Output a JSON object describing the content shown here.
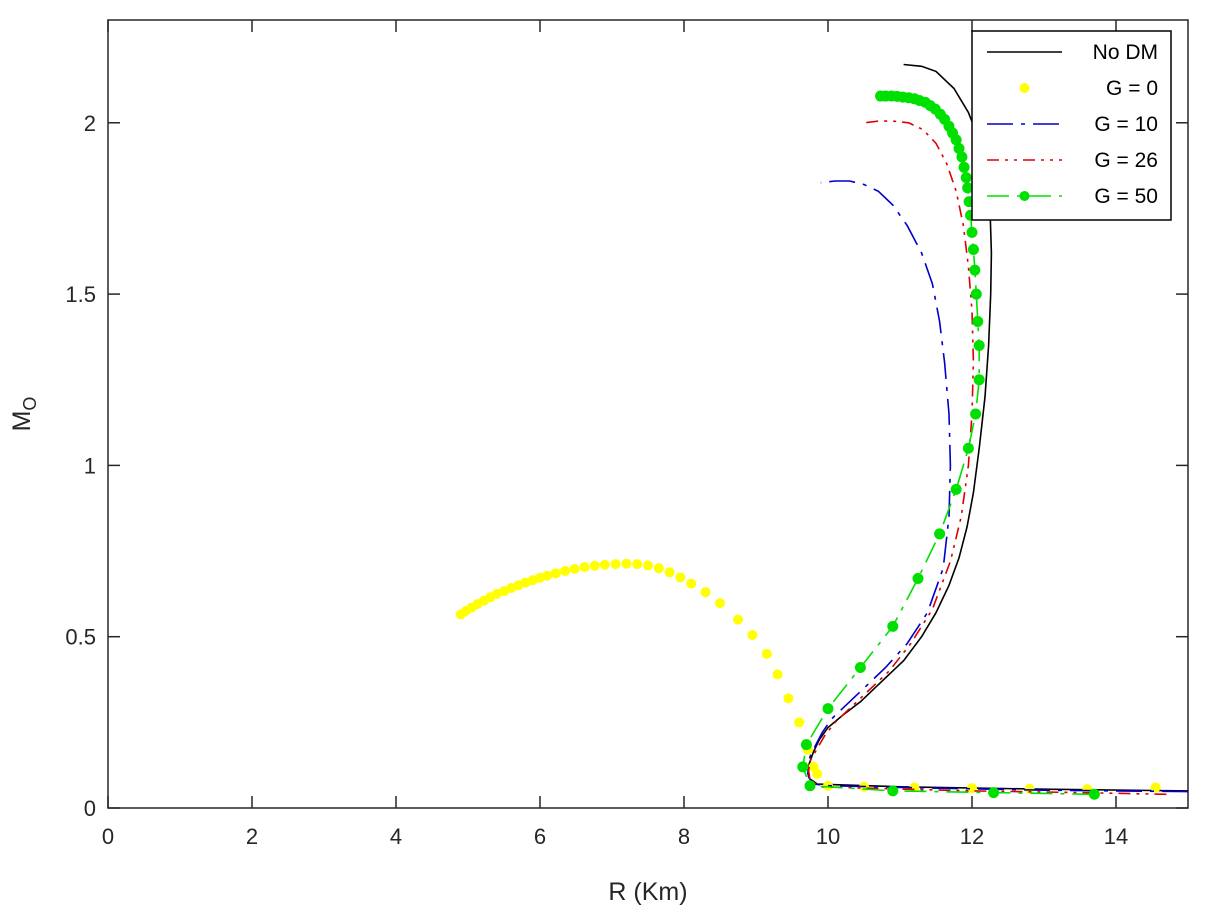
{
  "chart_data": {
    "type": "line",
    "title": "",
    "xlabel": "R (Km)",
    "ylabel_main": "M",
    "ylabel_sub": "O",
    "xlim": [
      0,
      15
    ],
    "ylim": [
      0,
      2.3
    ],
    "xticks": [
      0,
      2,
      4,
      6,
      8,
      10,
      12,
      14
    ],
    "yticks": [
      0,
      0.5,
      1,
      1.5,
      2
    ],
    "xtick_labels": [
      "0",
      "2",
      "4",
      "6",
      "8",
      "10",
      "12",
      "14"
    ],
    "ytick_labels": [
      "0",
      "0.5",
      "1",
      "1.5",
      "2"
    ],
    "grid": false,
    "legend_position": "top-right",
    "series": [
      {
        "name": "No DM",
        "style": "solid",
        "color": "#000000",
        "x": [
          15.0,
          13.0,
          11.0,
          10.1,
          9.85,
          9.75,
          9.72,
          9.74,
          9.8,
          9.88,
          10.0,
          10.2,
          10.45,
          10.75,
          11.05,
          11.3,
          11.5,
          11.68,
          11.82,
          11.93,
          12.02,
          12.1,
          12.18,
          12.23,
          12.26,
          12.27,
          12.25,
          12.2,
          12.1,
          11.95,
          11.75,
          11.5,
          11.3,
          11.05
        ],
        "y": [
          0.05,
          0.055,
          0.062,
          0.068,
          0.07,
          0.085,
          0.1,
          0.13,
          0.165,
          0.2,
          0.235,
          0.27,
          0.31,
          0.37,
          0.43,
          0.5,
          0.57,
          0.65,
          0.73,
          0.82,
          0.92,
          1.05,
          1.2,
          1.35,
          1.5,
          1.62,
          1.75,
          1.85,
          1.95,
          2.03,
          2.1,
          2.15,
          2.165,
          2.17
        ]
      },
      {
        "name": "G = 0",
        "style": "dots",
        "color": "#ffff00",
        "x": [
          4.9,
          4.97,
          5.05,
          5.13,
          5.22,
          5.31,
          5.4,
          5.5,
          5.6,
          5.7,
          5.8,
          5.9,
          6.0,
          6.1,
          6.22,
          6.35,
          6.48,
          6.62,
          6.76,
          6.9,
          7.05,
          7.2,
          7.35,
          7.5,
          7.65,
          7.8,
          7.95,
          8.1,
          8.3,
          8.5,
          8.75,
          8.95,
          9.15,
          9.3,
          9.45,
          9.6,
          9.72,
          9.8,
          9.85,
          10.0,
          10.5,
          11.2,
          12.0,
          12.8,
          13.6,
          14.55
        ],
        "y": [
          0.565,
          0.575,
          0.585,
          0.595,
          0.605,
          0.615,
          0.625,
          0.633,
          0.642,
          0.65,
          0.658,
          0.665,
          0.672,
          0.678,
          0.685,
          0.692,
          0.698,
          0.703,
          0.707,
          0.71,
          0.712,
          0.713,
          0.712,
          0.708,
          0.7,
          0.688,
          0.673,
          0.655,
          0.63,
          0.598,
          0.55,
          0.505,
          0.45,
          0.39,
          0.32,
          0.25,
          0.17,
          0.12,
          0.1,
          0.065,
          0.062,
          0.06,
          0.058,
          0.056,
          0.055,
          0.06
        ]
      },
      {
        "name": "G = 10",
        "style": "dashdot",
        "color": "#0000cc",
        "x": [
          15.0,
          13.0,
          11.0,
          10.0,
          9.8,
          9.73,
          9.72,
          9.75,
          9.82,
          9.92,
          10.05,
          10.25,
          10.5,
          10.8,
          11.1,
          11.38,
          11.6,
          11.68,
          11.7,
          11.68,
          11.62,
          11.55,
          11.45,
          11.3,
          11.1,
          10.9,
          10.7,
          10.5,
          10.3,
          10.1,
          9.9
        ],
        "y": [
          0.048,
          0.052,
          0.06,
          0.065,
          0.07,
          0.09,
          0.12,
          0.15,
          0.18,
          0.22,
          0.26,
          0.3,
          0.35,
          0.41,
          0.48,
          0.57,
          0.7,
          0.85,
          1.0,
          1.15,
          1.3,
          1.42,
          1.53,
          1.62,
          1.7,
          1.76,
          1.8,
          1.82,
          1.83,
          1.83,
          1.825
        ]
      },
      {
        "name": "G = 26",
        "style": "dashdotdot",
        "color": "#dd0000",
        "x": [
          14.7,
          13.5,
          12.0,
          10.5,
          9.9,
          9.75,
          9.73,
          9.76,
          9.84,
          9.95,
          10.1,
          10.3,
          10.55,
          10.85,
          11.15,
          11.45,
          11.7,
          11.85,
          11.95,
          12.0,
          12.02,
          12.0,
          11.95,
          11.88,
          11.78,
          11.65,
          11.5,
          11.32,
          11.12,
          10.9,
          10.7,
          10.5
        ],
        "y": [
          0.04,
          0.045,
          0.05,
          0.058,
          0.062,
          0.08,
          0.11,
          0.14,
          0.17,
          0.21,
          0.25,
          0.29,
          0.34,
          0.4,
          0.48,
          0.58,
          0.72,
          0.85,
          1.0,
          1.15,
          1.3,
          1.45,
          1.58,
          1.7,
          1.8,
          1.88,
          1.94,
          1.98,
          2.0,
          2.005,
          2.005,
          2.0
        ]
      },
      {
        "name": "G = 50",
        "style": "dashdot-dots",
        "color": "#00e000",
        "x": [
          13.7,
          12.3,
          10.9,
          9.75,
          9.65,
          9.7,
          10.0,
          10.45,
          10.9,
          11.25,
          11.55,
          11.78,
          11.95,
          12.05,
          12.1,
          12.1,
          12.08,
          12.06,
          12.04,
          12.02,
          12.0,
          11.98,
          11.96,
          11.94,
          11.92,
          11.89,
          11.86,
          11.82,
          11.78,
          11.73,
          11.68,
          11.62,
          11.56,
          11.49,
          11.42,
          11.35,
          11.27,
          11.2,
          11.12,
          11.04,
          10.96,
          10.88,
          10.8,
          10.73
        ],
        "y": [
          0.04,
          0.045,
          0.05,
          0.065,
          0.12,
          0.185,
          0.29,
          0.41,
          0.53,
          0.67,
          0.8,
          0.93,
          1.05,
          1.15,
          1.25,
          1.35,
          1.42,
          1.5,
          1.57,
          1.63,
          1.68,
          1.73,
          1.77,
          1.81,
          1.84,
          1.87,
          1.9,
          1.925,
          1.95,
          1.97,
          1.99,
          2.01,
          2.025,
          2.04,
          2.05,
          2.06,
          2.065,
          2.07,
          2.073,
          2.075,
          2.077,
          2.078,
          2.078,
          2.078
        ]
      }
    ]
  }
}
